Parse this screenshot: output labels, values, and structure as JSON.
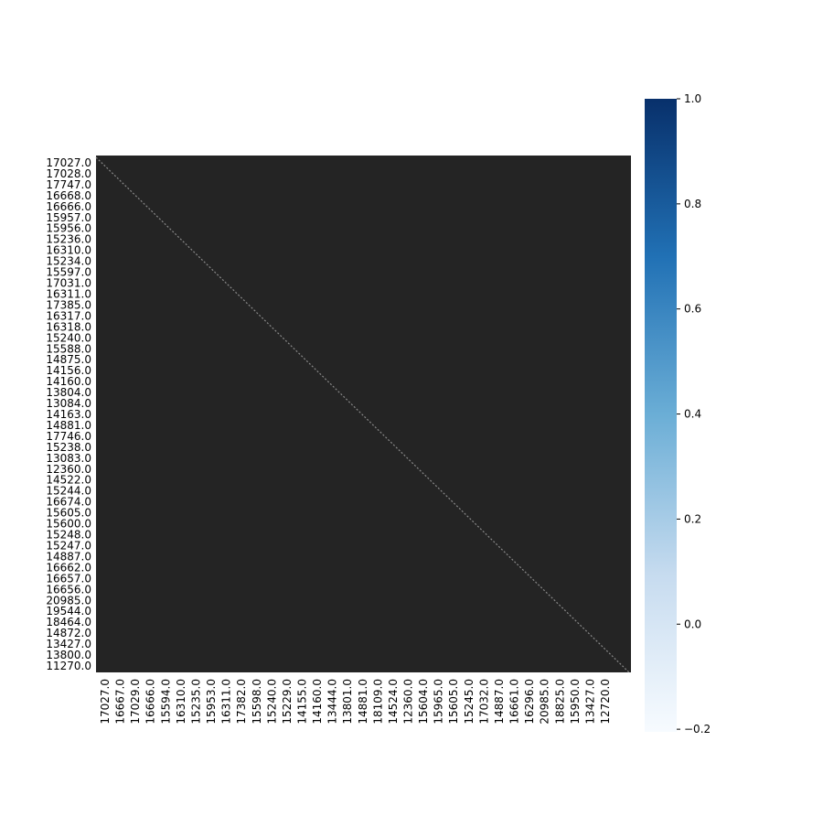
{
  "chart_data": {
    "type": "heatmap",
    "cmap": [
      "#f7fbff",
      "#c6dbef",
      "#6baed6",
      "#2171b5",
      "#08306b"
    ],
    "x_labels": [
      "17027.0",
      "16667.0",
      "17029.0",
      "16666.0",
      "15594.0",
      "16310.0",
      "15235.0",
      "15953.0",
      "16311.0",
      "17382.0",
      "15598.0",
      "15240.0",
      "15229.0",
      "14155.0",
      "14160.0",
      "13444.0",
      "13801.0",
      "14881.0",
      "18109.0",
      "14524.0",
      "12360.0",
      "15604.0",
      "15965.0",
      "15605.0",
      "15245.0",
      "17032.0",
      "14887.0",
      "16661.0",
      "16296.0",
      "20985.0",
      "18825.0",
      "15950.0",
      "13427.0",
      "12720.0"
    ],
    "y_labels": [
      "17027.0",
      "17028.0",
      "17747.0",
      "16668.0",
      "16666.0",
      "15957.0",
      "15956.0",
      "15236.0",
      "16310.0",
      "15234.0",
      "15597.0",
      "17031.0",
      "16311.0",
      "17385.0",
      "16317.0",
      "16318.0",
      "15240.0",
      "15588.0",
      "14875.0",
      "14156.0",
      "14160.0",
      "13804.0",
      "13084.0",
      "14163.0",
      "14881.0",
      "17746.0",
      "15238.0",
      "13083.0",
      "12360.0",
      "14522.0",
      "15244.0",
      "16674.0",
      "15605.0",
      "15600.0",
      "15248.0",
      "15247.0",
      "14887.0",
      "16662.0",
      "16657.0",
      "16656.0",
      "20985.0",
      "19544.0",
      "18464.0",
      "14872.0",
      "13427.0",
      "13800.0",
      "11270.0"
    ],
    "clim": [
      -0.205,
      1
    ],
    "cticks": [
      {
        "value": -0.2,
        "label": "−0.2"
      },
      {
        "value": 0,
        "label": "0.0"
      },
      0.2,
      0.4,
      0.6,
      0.8,
      {
        "value": 1,
        "label": "1.0"
      }
    ]
  }
}
